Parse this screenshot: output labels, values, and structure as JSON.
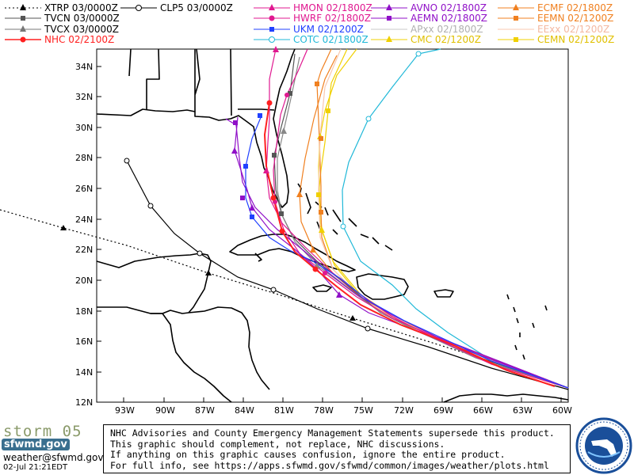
{
  "legend": [
    {
      "label": "XTRP 03/0000Z",
      "color": "#000000",
      "marker": "triangle",
      "dash": true
    },
    {
      "label": "TVCN 03/0000Z",
      "color": "#555555",
      "marker": "square",
      "dash": false
    },
    {
      "label": "TVCX 03/0000Z",
      "color": "#777777",
      "marker": "triangle",
      "dash": false
    },
    {
      "label": "NHC 02/2100Z",
      "color": "#ff2020",
      "marker": "circle",
      "dash": false
    },
    {
      "label": "CLP5 03/0000Z",
      "color": "#000000",
      "marker": "o",
      "dash": false
    },
    {
      "label": "HMON 02/1800Z",
      "color": "#e01890",
      "marker": "triangle",
      "dash": false
    },
    {
      "label": "HWRF 02/1800Z",
      "color": "#e01890",
      "marker": "circle",
      "dash": false
    },
    {
      "label": "UKM 02/1200Z",
      "color": "#2040ff",
      "marker": "square",
      "dash": false
    },
    {
      "label": "COTC 02/1800Z",
      "color": "#20b8d8",
      "marker": "o",
      "dash": false
    },
    {
      "label": "AVNO 02/1800Z",
      "color": "#9010c8",
      "marker": "triangle",
      "dash": false
    },
    {
      "label": "AEMN 02/1800Z",
      "color": "#9010c8",
      "marker": "square",
      "dash": false
    },
    {
      "label": "APxx 02/1800Z",
      "color": "#c8c8c8",
      "marker": "none",
      "dash": false
    },
    {
      "label": "CMC 02/1200Z",
      "color": "#f0d000",
      "marker": "triangle",
      "dash": false
    },
    {
      "label": "ECMF 02/1800Z",
      "color": "#f08020",
      "marker": "triangle",
      "dash": false
    },
    {
      "label": "EEMN 02/1200Z",
      "color": "#f08020",
      "marker": "square",
      "dash": false
    },
    {
      "label": "EExx 02/1200Z",
      "color": "#f8c8b0",
      "marker": "none",
      "dash": false
    },
    {
      "label": "CEMN 02/1200Z",
      "color": "#f0d000",
      "marker": "square",
      "dash": false
    }
  ],
  "axes": {
    "lat_labels": [
      "34N",
      "32N",
      "30N",
      "28N",
      "26N",
      "24N",
      "22N",
      "20N",
      "18N",
      "16N",
      "14N",
      "12N"
    ],
    "lon_labels": [
      "93W",
      "90W",
      "87W",
      "84W",
      "81W",
      "78W",
      "75W",
      "72W",
      "69W",
      "66W",
      "63W",
      "60W"
    ]
  },
  "footer": {
    "brand": "storm_05",
    "site": "sfwmd.gov",
    "email": "weather@sfwmd.gov",
    "timestamp": "02-Jul 21:21EDT"
  },
  "disclaimer": [
    "NHC Advisories and County Emergency Management Statements supersede this product.",
    "This graphic should complement, not replace, NHC discussions.",
    "If anything on this graphic causes confusion, ignore the entire product.",
    "For full info, see  https://apps.sfwmd.gov/sfwmd/common/images/weather/plots.html"
  ],
  "seal": {
    "text": "SOUTH FLORIDA WATER MANAGEMENT DISTRICT",
    "color": "#1a4f9a"
  }
}
